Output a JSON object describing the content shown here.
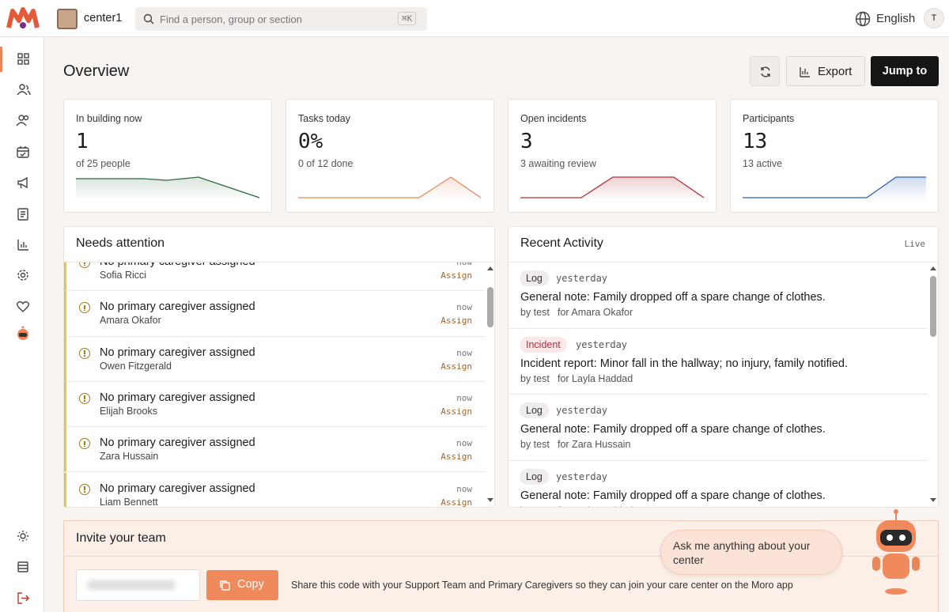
{
  "header": {
    "workspace": "center1",
    "search_placeholder": "Find a person, group or section",
    "shortcut": "⌘K",
    "language": "English",
    "avatar": "T"
  },
  "page": {
    "title": "Overview",
    "export": "Export",
    "jump": "Jump to"
  },
  "stats": [
    {
      "label": "In building now",
      "value": "1",
      "sub": "of 25 people"
    },
    {
      "label": "Tasks today",
      "value": "0%",
      "sub": "0 of 12 done"
    },
    {
      "label": "Open incidents",
      "value": "3",
      "sub": "3 awaiting review"
    },
    {
      "label": "Participants",
      "value": "13",
      "sub": "13 active"
    }
  ],
  "needs_attention": {
    "title": "Needs attention",
    "items": [
      {
        "title": "No primary caregiver assigned",
        "name": "Sofia Ricci",
        "time": "now",
        "action": "Assign"
      },
      {
        "title": "No primary caregiver assigned",
        "name": "Amara Okafor",
        "time": "now",
        "action": "Assign"
      },
      {
        "title": "No primary caregiver assigned",
        "name": "Owen Fitzgerald",
        "time": "now",
        "action": "Assign"
      },
      {
        "title": "No primary caregiver assigned",
        "name": "Elijah Brooks",
        "time": "now",
        "action": "Assign"
      },
      {
        "title": "No primary caregiver assigned",
        "name": "Zara Hussain",
        "time": "now",
        "action": "Assign"
      },
      {
        "title": "No primary caregiver assigned",
        "name": "Liam Bennett",
        "time": "now",
        "action": "Assign"
      }
    ]
  },
  "recent_activity": {
    "title": "Recent Activity",
    "status": "Live",
    "items": [
      {
        "tag": "Log",
        "time": "yesterday",
        "text": "General note: Family dropped off a spare change of clothes.",
        "by": "by test",
        "for": "for Amara Okafor"
      },
      {
        "tag": "Incident",
        "time": "yesterday",
        "text": "Incident report: Minor fall in the hallway; no injury, family notified.",
        "by": "by test",
        "for": "for Layla Haddad"
      },
      {
        "tag": "Log",
        "time": "yesterday",
        "text": "General note: Family dropped off a spare change of clothes.",
        "by": "by test",
        "for": "for Zara Hussain"
      },
      {
        "tag": "Log",
        "time": "yesterday",
        "text": "General note: Family dropped off a spare change of clothes.",
        "by": "by test",
        "for": "for Layla Haddad"
      }
    ]
  },
  "invite": {
    "title": "Invite your team",
    "button": "Copy",
    "description": "Share this code with your Support Team and Primary Caregivers so they can join your care center on the Moro app"
  },
  "assistant": {
    "prompt": "Ask me anything about your center"
  }
}
